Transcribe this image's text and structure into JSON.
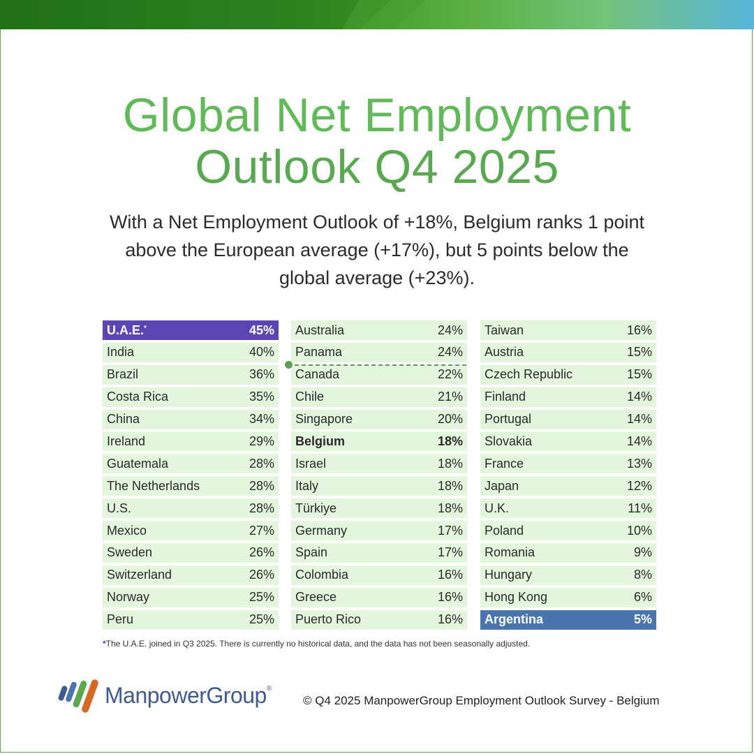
{
  "title": {
    "line1": "Global Net Employment",
    "line2": "Outlook Q4 2025"
  },
  "subtitle": "With a Net Employment Outlook of +18%, Belgium ranks 1 point above the European average (+17%), but 5 points below the global average (+23%).",
  "colors": {
    "title": "#62b95a",
    "row_background": "#e3f5dc",
    "top_highlight": "#5b45b5",
    "bottom_highlight": "#4a74ae",
    "average_line": "#5a9e58"
  },
  "columns": [
    [
      {
        "country": "U.A.E.",
        "marker": "*",
        "value": "45%",
        "style": "top"
      },
      {
        "country": "India",
        "value": "40%"
      },
      {
        "country": "Brazil",
        "value": "36%"
      },
      {
        "country": "Costa Rica",
        "value": "35%"
      },
      {
        "country": "China",
        "value": "34%"
      },
      {
        "country": "Ireland",
        "value": "29%"
      },
      {
        "country": "Guatemala",
        "value": "28%"
      },
      {
        "country": "The Netherlands",
        "value": "28%"
      },
      {
        "country": "U.S.",
        "value": "28%"
      },
      {
        "country": "Mexico",
        "value": "27%"
      },
      {
        "country": "Sweden",
        "value": "26%"
      },
      {
        "country": "Switzerland",
        "value": "26%"
      },
      {
        "country": "Norway",
        "value": "25%"
      },
      {
        "country": "Peru",
        "value": "25%"
      }
    ],
    [
      {
        "country": "Australia",
        "value": "24%"
      },
      {
        "country": "Panama",
        "value": "24%"
      },
      {
        "country": "Canada",
        "value": "22%"
      },
      {
        "country": "Chile",
        "value": "21%"
      },
      {
        "country": "Singapore",
        "value": "20%"
      },
      {
        "country": "Belgium",
        "value": "18%",
        "style": "bold"
      },
      {
        "country": "Israel",
        "value": "18%"
      },
      {
        "country": "Italy",
        "value": "18%"
      },
      {
        "country": "Türkiye",
        "value": "18%"
      },
      {
        "country": "Germany",
        "value": "17%"
      },
      {
        "country": "Spain",
        "value": "17%"
      },
      {
        "country": "Colombia",
        "value": "16%"
      },
      {
        "country": "Greece",
        "value": "16%"
      },
      {
        "country": "Puerto Rico",
        "value": "16%"
      }
    ],
    [
      {
        "country": "Taiwan",
        "value": "16%"
      },
      {
        "country": "Austria",
        "value": "15%"
      },
      {
        "country": "Czech Republic",
        "value": "15%"
      },
      {
        "country": "Finland",
        "value": "14%"
      },
      {
        "country": "Portugal",
        "value": "14%"
      },
      {
        "country": "Slovakia",
        "value": "14%"
      },
      {
        "country": "France",
        "value": "13%"
      },
      {
        "country": "Japan",
        "value": "12%"
      },
      {
        "country": "U.K.",
        "value": "11%"
      },
      {
        "country": "Poland",
        "value": "10%"
      },
      {
        "country": "Romania",
        "value": "9%"
      },
      {
        "country": "Hungary",
        "value": "8%"
      },
      {
        "country": "Hong Kong",
        "value": "6%"
      },
      {
        "country": "Argentina",
        "value": "5%",
        "style": "bottom"
      }
    ]
  ],
  "footnote": {
    "star": "*",
    "text": "The U.A.E. joined in Q3 2025. There is currently no historical data, and the data has not been seasonally adjusted."
  },
  "logo": {
    "name": "ManpowerGroup",
    "registered": "®",
    "icon": "manpowergroup-logo-icon"
  },
  "copyright": "© Q4 2025 ManpowerGroup Employment Outlook Survey - Belgium"
}
